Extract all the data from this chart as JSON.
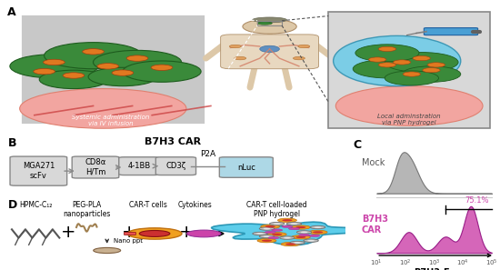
{
  "label_A": "A",
  "label_B": "B",
  "label_C": "C",
  "label_D": "D",
  "b7h3_car_title": "B7H3 CAR",
  "car_boxes": [
    "MGA271\nscFv",
    "CD8α\nH/Tm",
    "4-1BB",
    "CD3ζ",
    "nLuc"
  ],
  "car_linker": "P2A",
  "systemic_label": "Systemic administration\nvia IV infusion",
  "local_label": "Local adminstration\nvia PNP hydrogel",
  "mock_label": "Mock",
  "b7h3_car_label": "B7H3\nCAR",
  "b7h3_fc_label": "B7H3-Fc",
  "pct_label": "75.1%",
  "hpmc_label": "HPMC-C₁₂",
  "pegpla_label": "PEG-PLA\nnanoparticles",
  "cart_label": "CAR-T cells",
  "cytokine_label": "Cytokines",
  "hydrogel_label": "CAR-T cell-loaded\nPNP hydrogel",
  "nano_ppt_label": "Nano ppt",
  "bg_gray": "#d4d4d4",
  "bg_light": "#e0e0e0",
  "skin_pink": "#f2a5a0",
  "tumor_green": "#3a8a3a",
  "tumor_dark": "#1e5c1e",
  "orange_dot": "#e07820",
  "hydrogel_blue": "#5bc8e8",
  "box_gray": "#d8d8d8",
  "box_blue": "#add8e6",
  "magenta": "#cc44aa",
  "gray_cell": "#888888",
  "orange_cell": "#f0a020",
  "red_inner": "#cc3030",
  "tan_chain": "#a08050",
  "syringe_blue": "#4a9fd4",
  "body_color": "#c8a882",
  "vein_color": "#d4826a",
  "heart_blue": "#6090c0"
}
